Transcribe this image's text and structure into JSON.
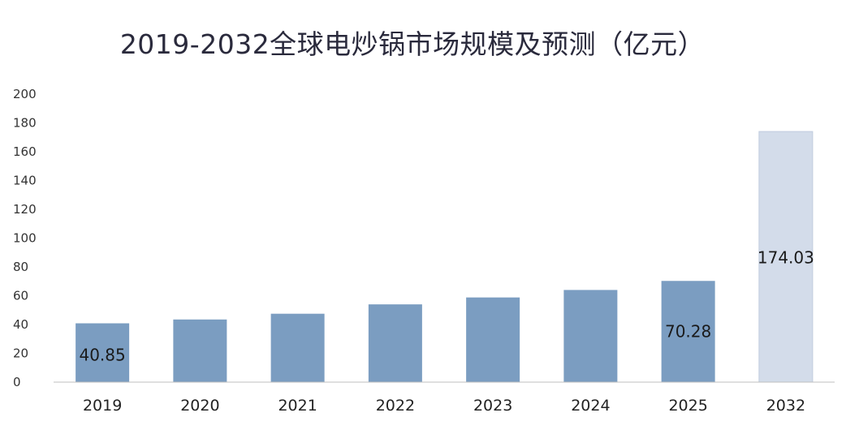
{
  "chart_data": {
    "type": "bar",
    "title": "2019-2032全球电炒锅市场规模及预测（亿元）",
    "xlabel": "",
    "ylabel": "",
    "categories": [
      "2019",
      "2020",
      "2021",
      "2022",
      "2023",
      "2024",
      "2025",
      "2032"
    ],
    "values": [
      40.85,
      43.5,
      47.5,
      54.0,
      58.8,
      64.0,
      70.28,
      174.03
    ],
    "data_labels": [
      {
        "category": "2019",
        "text": "40.85"
      },
      {
        "category": "2025",
        "text": "70.28"
      },
      {
        "category": "2032",
        "text": "174.03"
      }
    ],
    "ylim": [
      0,
      200
    ],
    "yticks": [
      "0",
      "20",
      "40",
      "60",
      "80",
      "100",
      "120",
      "140",
      "160",
      "180",
      "200"
    ],
    "grid": false,
    "legend": "none",
    "colors": {
      "actual": "#7b9dc1",
      "forecast": "#d3dcea",
      "forecast_border": "#c0ccde",
      "axis": "#bfbfbf"
    },
    "forecast_categories": [
      "2032"
    ]
  }
}
